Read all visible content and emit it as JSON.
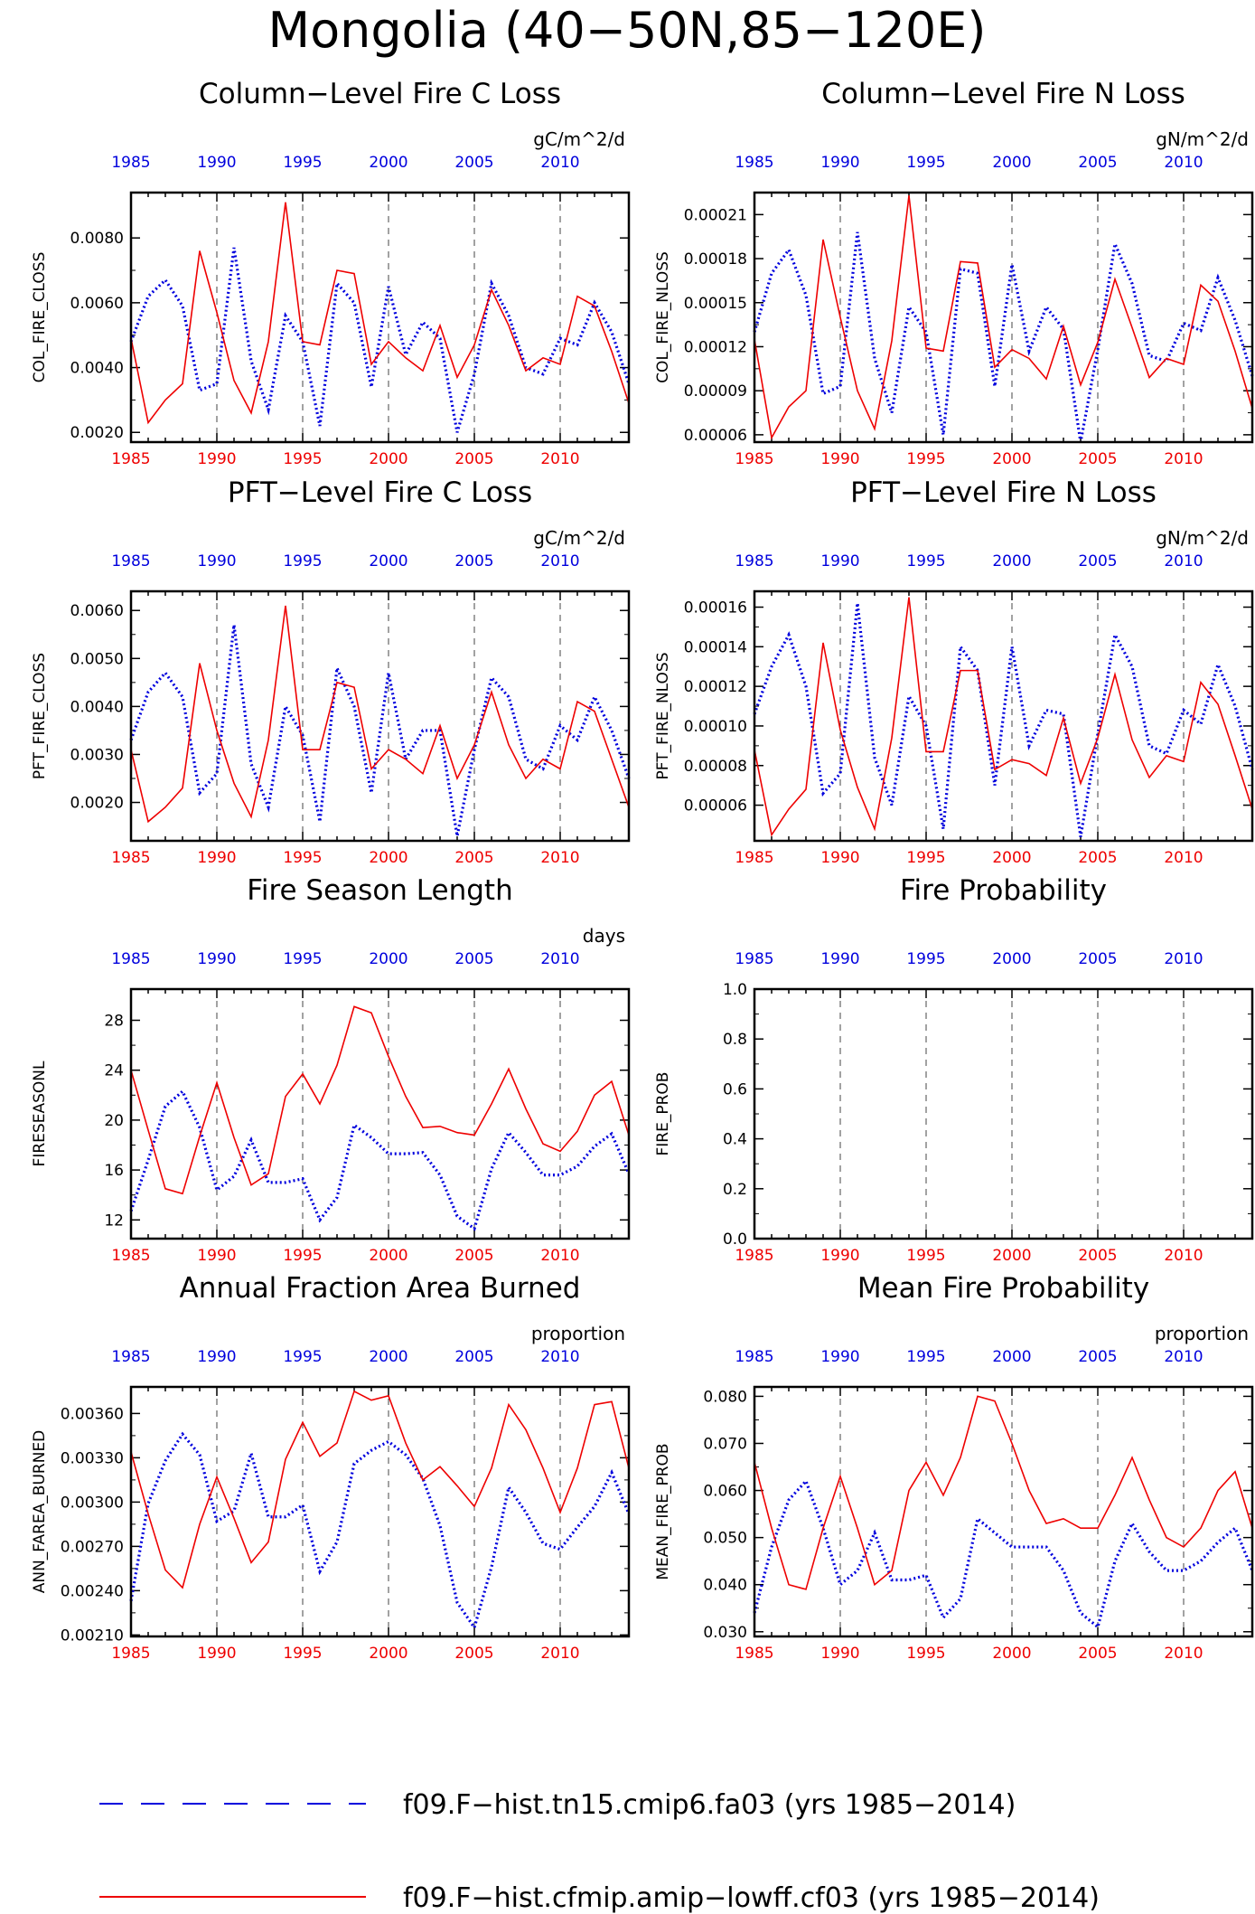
{
  "page": {
    "title": "Mongolia (40−50N,85−120E)"
  },
  "colors": {
    "series_a": "#0000dd",
    "series_b": "#ee0000",
    "axis": "#000000"
  },
  "legend": {
    "entries": [
      {
        "label": "f09.F−hist.tn15.cmip6.fa03 (yrs 1985−2014)",
        "style": "dashed",
        "color": "#0000dd"
      },
      {
        "label": "f09.F−hist.cfmip.amip−lowff.cf03 (yrs 1985−2014)",
        "style": "solid",
        "color": "#ee0000"
      }
    ]
  },
  "year_ticks": [
    "1985",
    "1990",
    "1995",
    "2000",
    "2005",
    "2010"
  ],
  "chart_data": [
    {
      "type": "line",
      "title": "Column−Level Fire C Loss",
      "units": "gC/m^2/d",
      "ylabel": "COL_FIRE_CLOSS",
      "ylim": [
        0.0017,
        0.0094
      ],
      "yticks": [
        0.002,
        0.004,
        0.006,
        0.008
      ],
      "yticklabels": [
        "0.0020",
        "0.0040",
        "0.0060",
        "0.0080"
      ],
      "x": [
        1985,
        1986,
        1987,
        1988,
        1989,
        1990,
        1991,
        1992,
        1993,
        1994,
        1995,
        1996,
        1997,
        1998,
        1999,
        2000,
        2001,
        2002,
        2003,
        2004,
        2005,
        2006,
        2007,
        2008,
        2009,
        2010,
        2011,
        2012,
        2013,
        2014
      ],
      "series": [
        {
          "name": "f09.F−hist.tn15.cmip6.fa03",
          "values": [
            0.0048,
            0.0062,
            0.0067,
            0.0059,
            0.0033,
            0.0035,
            0.0077,
            0.0042,
            0.0027,
            0.0056,
            0.0048,
            0.0022,
            0.0066,
            0.006,
            0.0034,
            0.0065,
            0.0044,
            0.0054,
            0.0049,
            0.002,
            0.0038,
            0.0066,
            0.0056,
            0.004,
            0.0038,
            0.0049,
            0.0047,
            0.006,
            0.0051,
            0.0035
          ]
        },
        {
          "name": "f09.F−hist.cfmip.amip−lowff.cf03",
          "values": [
            0.0049,
            0.0023,
            0.003,
            0.0035,
            0.0076,
            0.0057,
            0.0036,
            0.0026,
            0.0048,
            0.0091,
            0.0048,
            0.0047,
            0.007,
            0.0069,
            0.0041,
            0.0048,
            0.0043,
            0.0039,
            0.0053,
            0.0037,
            0.0047,
            0.0064,
            0.0053,
            0.0039,
            0.0043,
            0.0041,
            0.0062,
            0.0059,
            0.0045,
            0.0029
          ]
        }
      ]
    },
    {
      "type": "line",
      "title": "Column−Level Fire N Loss",
      "units": "gN/m^2/d",
      "ylabel": "COL_FIRE_NLOSS",
      "ylim": [
        5.5e-05,
        0.000225
      ],
      "yticks": [
        6e-05,
        9e-05,
        0.00012,
        0.00015,
        0.00018,
        0.00021
      ],
      "yticklabels": [
        "0.00006",
        "0.00009",
        "0.00012",
        "0.00015",
        "0.00018",
        "0.00021"
      ],
      "x": [
        1985,
        1986,
        1987,
        1988,
        1989,
        1990,
        1991,
        1992,
        1993,
        1994,
        1995,
        1996,
        1997,
        1998,
        1999,
        2000,
        2001,
        2002,
        2003,
        2004,
        2005,
        2006,
        2007,
        2008,
        2009,
        2010,
        2011,
        2012,
        2013,
        2014
      ],
      "series": [
        {
          "name": "f09.F−hist.tn15.cmip6.fa03",
          "values": [
            0.00013,
            0.00017,
            0.000186,
            0.000155,
            8.8e-05,
            9.3e-05,
            0.000198,
            0.000112,
            7.5e-05,
            0.000147,
            0.00013,
            6e-05,
            0.000173,
            0.00017,
            9.3e-05,
            0.000176,
            0.000117,
            0.000147,
            0.000132,
            5.5e-05,
            0.000118,
            0.00019,
            0.000163,
            0.000114,
            0.00011,
            0.000136,
            0.000131,
            0.000167,
            0.000138,
            0.0001
          ]
        },
        {
          "name": "f09.F−hist.cfmip.amip−lowff.cf03",
          "values": [
            0.000125,
            5.8e-05,
            7.9e-05,
            9e-05,
            0.000193,
            0.00014,
            9e-05,
            6.4e-05,
            0.000124,
            0.000223,
            0.000119,
            0.000117,
            0.000178,
            0.000177,
            0.000106,
            0.000118,
            0.000112,
            9.8e-05,
            0.000134,
            9.4e-05,
            0.000123,
            0.000166,
            0.000133,
            9.9e-05,
            0.000112,
            0.000108,
            0.000162,
            0.000151,
            0.000117,
            7.8e-05
          ]
        }
      ]
    },
    {
      "type": "line",
      "title": "PFT−Level Fire C Loss",
      "units": "gC/m^2/d",
      "ylabel": "PFT_FIRE_CLOSS",
      "ylim": [
        0.0012,
        0.0064
      ],
      "yticks": [
        0.002,
        0.003,
        0.004,
        0.005,
        0.006
      ],
      "yticklabels": [
        "0.0020",
        "0.0030",
        "0.0040",
        "0.0050",
        "0.0060"
      ],
      "x": [
        1985,
        1986,
        1987,
        1988,
        1989,
        1990,
        1991,
        1992,
        1993,
        1994,
        1995,
        1996,
        1997,
        1998,
        1999,
        2000,
        2001,
        2002,
        2003,
        2004,
        2005,
        2006,
        2007,
        2008,
        2009,
        2010,
        2011,
        2012,
        2013,
        2014
      ],
      "series": [
        {
          "name": "f09.F−hist.tn15.cmip6.fa03",
          "values": [
            0.0033,
            0.0043,
            0.0047,
            0.0042,
            0.0022,
            0.0026,
            0.0057,
            0.0028,
            0.0019,
            0.004,
            0.0034,
            0.0016,
            0.0048,
            0.004,
            0.0022,
            0.0047,
            0.0029,
            0.0035,
            0.0035,
            0.0013,
            0.0031,
            0.0046,
            0.0042,
            0.0029,
            0.0027,
            0.0036,
            0.0033,
            0.0042,
            0.0035,
            0.0025
          ]
        },
        {
          "name": "f09.F−hist.cfmip.amip−lowff.cf03",
          "values": [
            0.0031,
            0.0016,
            0.0019,
            0.0023,
            0.0049,
            0.0035,
            0.0024,
            0.0017,
            0.0033,
            0.0061,
            0.0031,
            0.0031,
            0.0045,
            0.0044,
            0.0027,
            0.0031,
            0.0029,
            0.0026,
            0.0036,
            0.0025,
            0.0032,
            0.0043,
            0.0032,
            0.0025,
            0.0029,
            0.0027,
            0.0041,
            0.0039,
            0.0029,
            0.0019
          ]
        }
      ]
    },
    {
      "type": "line",
      "title": "PFT−Level Fire N Loss",
      "units": "gN/m^2/d",
      "ylabel": "PFT_FIRE_NLOSS",
      "ylim": [
        4.2e-05,
        0.000168
      ],
      "yticks": [
        6e-05,
        8e-05,
        0.0001,
        0.00012,
        0.00014,
        0.00016
      ],
      "yticklabels": [
        "0.00006",
        "0.00008",
        "0.00010",
        "0.00012",
        "0.00014",
        "0.00016"
      ],
      "x": [
        1985,
        1986,
        1987,
        1988,
        1989,
        1990,
        1991,
        1992,
        1993,
        1994,
        1995,
        1996,
        1997,
        1998,
        1999,
        2000,
        2001,
        2002,
        2003,
        2004,
        2005,
        2006,
        2007,
        2008,
        2009,
        2010,
        2011,
        2012,
        2013,
        2014
      ],
      "series": [
        {
          "name": "f09.F−hist.tn15.cmip6.fa03",
          "values": [
            0.000106,
            0.00013,
            0.000146,
            0.00012,
            6.6e-05,
            7.6e-05,
            0.000162,
            8.4e-05,
            6e-05,
            0.000115,
            0.0001,
            4.8e-05,
            0.00014,
            0.000128,
            7e-05,
            0.00014,
            9e-05,
            0.000108,
            0.000106,
            4.4e-05,
            9.6e-05,
            0.000146,
            0.00013,
            9e-05,
            8.6e-05,
            0.000108,
            0.000101,
            0.000131,
            0.00011,
            7.8e-05
          ]
        },
        {
          "name": "f09.F−hist.cfmip.amip−lowff.cf03",
          "values": [
            8.8e-05,
            4.5e-05,
            5.8e-05,
            6.8e-05,
            0.000142,
            9.8e-05,
            6.9e-05,
            4.8e-05,
            9.4e-05,
            0.000165,
            8.7e-05,
            8.7e-05,
            0.000128,
            0.000128,
            7.8e-05,
            8.3e-05,
            8.1e-05,
            7.5e-05,
            0.000104,
            7.1e-05,
            9.4e-05,
            0.000126,
            9.3e-05,
            7.4e-05,
            8.5e-05,
            8.2e-05,
            0.000122,
            0.000111,
            8.5e-05,
            5.8e-05
          ]
        }
      ]
    },
    {
      "type": "line",
      "title": "Fire Season Length",
      "units": "days",
      "ylabel": "FIRESEASONL",
      "ylim": [
        10.5,
        30.5
      ],
      "yticks": [
        12,
        16,
        20,
        24,
        28
      ],
      "yticklabels": [
        "12",
        "16",
        "20",
        "24",
        "28"
      ],
      "x": [
        1985,
        1986,
        1987,
        1988,
        1989,
        1990,
        1991,
        1992,
        1993,
        1994,
        1995,
        1996,
        1997,
        1998,
        1999,
        2000,
        2001,
        2002,
        2003,
        2004,
        2005,
        2006,
        2007,
        2008,
        2009,
        2010,
        2011,
        2012,
        2013,
        2014
      ],
      "series": [
        {
          "name": "f09.F−hist.tn15.cmip6.fa03",
          "values": [
            12.7,
            16.8,
            21.1,
            22.3,
            19.4,
            14.4,
            15.5,
            18.4,
            15.0,
            15.0,
            15.3,
            12.0,
            13.8,
            19.6,
            18.6,
            17.3,
            17.3,
            17.4,
            15.6,
            12.3,
            11.3,
            16.1,
            19.0,
            17.4,
            15.6,
            15.6,
            16.3,
            17.9,
            18.9,
            15.7
          ]
        },
        {
          "name": "f09.F−hist.cfmip.amip−lowff.cf03",
          "values": [
            24.0,
            19.2,
            14.5,
            14.1,
            18.7,
            23.0,
            18.6,
            14.8,
            15.7,
            21.9,
            23.7,
            21.3,
            24.4,
            29.1,
            28.6,
            25.1,
            21.9,
            19.4,
            19.5,
            19.0,
            18.8,
            21.3,
            24.1,
            20.9,
            18.1,
            17.5,
            19.1,
            22.0,
            23.1,
            18.8
          ]
        }
      ]
    },
    {
      "type": "line",
      "title": "Fire Probability",
      "units": "",
      "ylabel": "FIRE_PROB",
      "ylim": [
        0.0,
        1.0
      ],
      "yticks": [
        0.0,
        0.2,
        0.4,
        0.6,
        0.8,
        1.0
      ],
      "yticklabels": [
        "0.0",
        "0.2",
        "0.4",
        "0.6",
        "0.8",
        "1.0"
      ],
      "x": [],
      "series": []
    },
    {
      "type": "line",
      "title": "Annual Fraction Area Burned",
      "units": "proportion",
      "ylabel": "ANN_FAREA_BURNED",
      "ylim": [
        0.00209,
        0.00378
      ],
      "yticks": [
        0.0021,
        0.0024,
        0.0027,
        0.003,
        0.0033,
        0.0036
      ],
      "yticklabels": [
        "0.00210",
        "0.00240",
        "0.00270",
        "0.00300",
        "0.00330",
        "0.00360"
      ],
      "x": [
        1985,
        1986,
        1987,
        1988,
        1989,
        1990,
        1991,
        1992,
        1993,
        1994,
        1995,
        1996,
        1997,
        1998,
        1999,
        2000,
        2001,
        2002,
        2003,
        2004,
        2005,
        2006,
        2007,
        2008,
        2009,
        2010,
        2011,
        2012,
        2013,
        2014
      ],
      "series": [
        {
          "name": "f09.F−hist.tn15.cmip6.fa03",
          "values": [
            0.00233,
            0.00299,
            0.00328,
            0.00346,
            0.00332,
            0.00287,
            0.00294,
            0.00333,
            0.0029,
            0.0029,
            0.00298,
            0.00253,
            0.00273,
            0.00326,
            0.00335,
            0.00341,
            0.00332,
            0.00316,
            0.00284,
            0.00232,
            0.00215,
            0.00256,
            0.0031,
            0.00293,
            0.00272,
            0.00268,
            0.00283,
            0.00297,
            0.0032,
            0.00292
          ]
        },
        {
          "name": "f09.F−hist.cfmip.amip−lowff.cf03",
          "values": [
            0.00334,
            0.00292,
            0.00254,
            0.00242,
            0.00285,
            0.00317,
            0.00289,
            0.00259,
            0.00273,
            0.00329,
            0.00354,
            0.00331,
            0.0034,
            0.00375,
            0.00369,
            0.00372,
            0.0034,
            0.00315,
            0.00324,
            0.00311,
            0.00297,
            0.00323,
            0.00366,
            0.00349,
            0.00323,
            0.00293,
            0.00323,
            0.00366,
            0.00368,
            0.00323
          ]
        }
      ]
    },
    {
      "type": "line",
      "title": "Mean Fire Probability",
      "units": "proportion",
      "ylabel": "MEAN_FIRE_PROB",
      "ylim": [
        0.029,
        0.082
      ],
      "yticks": [
        0.03,
        0.04,
        0.05,
        0.06,
        0.07,
        0.08
      ],
      "yticklabels": [
        "0.030",
        "0.040",
        "0.050",
        "0.060",
        "0.070",
        "0.080"
      ],
      "x": [
        1985,
        1986,
        1987,
        1988,
        1989,
        1990,
        1991,
        1992,
        1993,
        1994,
        1995,
        1996,
        1997,
        1998,
        1999,
        2000,
        2001,
        2002,
        2003,
        2004,
        2005,
        2006,
        2007,
        2008,
        2009,
        2010,
        2011,
        2012,
        2013,
        2014
      ],
      "series": [
        {
          "name": "f09.F−hist.tn15.cmip6.fa03",
          "values": [
            0.034,
            0.048,
            0.058,
            0.062,
            0.052,
            0.04,
            0.043,
            0.051,
            0.041,
            0.041,
            0.042,
            0.033,
            0.037,
            0.054,
            0.051,
            0.048,
            0.048,
            0.048,
            0.043,
            0.034,
            0.031,
            0.045,
            0.053,
            0.047,
            0.043,
            0.043,
            0.045,
            0.049,
            0.052,
            0.043
          ]
        },
        {
          "name": "f09.F−hist.cfmip.amip−lowff.cf03",
          "values": [
            0.066,
            0.052,
            0.04,
            0.039,
            0.052,
            0.063,
            0.052,
            0.04,
            0.043,
            0.06,
            0.066,
            0.059,
            0.067,
            0.08,
            0.079,
            0.07,
            0.06,
            0.053,
            0.054,
            0.052,
            0.052,
            0.059,
            0.067,
            0.058,
            0.05,
            0.048,
            0.052,
            0.06,
            0.064,
            0.052
          ]
        }
      ]
    }
  ]
}
